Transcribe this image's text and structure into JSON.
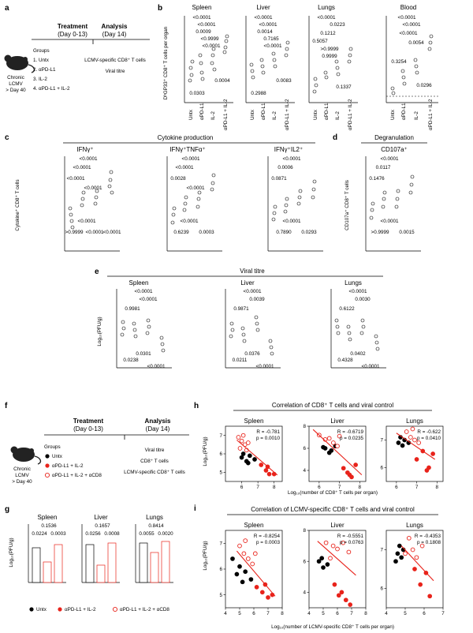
{
  "panels": {
    "a": {
      "letter": "a",
      "treatment_title": "Treatment",
      "treatment_sub": "(Day 0-13)",
      "analysis_title": "Analysis",
      "analysis_sub": "(Day 14)",
      "mouse_label": [
        "Chronic",
        "LCMV",
        "> Day 40"
      ],
      "groups_title": "Groups",
      "groups": [
        "1. Untx",
        "2. αPD-L1",
        "3. IL-2",
        "4. αPD-L1 + IL-2"
      ],
      "analysis_items": [
        "LCMV-specific CD8⁺ T cells",
        "Viral titre"
      ]
    },
    "b": {
      "letter": "b",
      "ylabel": "DᵇGP33⁺ CD8⁺ T cells per organ",
      "group_labels": [
        "Untx",
        "αPD-L1",
        "IL-2",
        "αPD-L1 + IL-2"
      ],
      "subplots": [
        {
          "title": "Spleen",
          "pvals": [
            "<0.0001",
            "<0.0001",
            "0.0009",
            "<0.9999",
            "<0.0001",
            "0.0303",
            "0.0004"
          ]
        },
        {
          "title": "Liver",
          "pvals": [
            "<0.0001",
            "<0.0001",
            "0.0014",
            "0.7165",
            "<0.0001",
            "0.2988",
            "0.0083"
          ]
        },
        {
          "title": "Lungs",
          "pvals": [
            "<0.0001",
            "0.0223",
            "0.1212",
            "0.5057",
            ">0.9999",
            "0.9999",
            "0.1337"
          ]
        },
        {
          "title": "Blood",
          "pvals": [
            "<0.0001",
            "<0.0001",
            "<0.0001",
            "0.0054",
            "0.3254",
            "0.0296"
          ]
        }
      ]
    },
    "c": {
      "letter": "c",
      "group_title": "Cytokine production",
      "ylabel": "Cytokine⁺ CD8⁺ T cells",
      "subplots": [
        {
          "title": "IFNγ⁺",
          "pvals": [
            "<0.0001",
            "<0.0001",
            "<0.0001",
            "<0.0001",
            "<0.0001",
            ">0.9999",
            "<0.0001",
            "<0.0001"
          ]
        },
        {
          "title": "IFNγ⁺TNFα⁺",
          "pvals": [
            "<0.0001",
            "<0.0001",
            "0.0028",
            "<0.0001",
            "<0.0001",
            "0.6239",
            "0.0003"
          ]
        },
        {
          "title": "IFNγ⁺IL2⁺",
          "pvals": [
            "<0.0001",
            "0.0006",
            "0.0871",
            "<0.0001",
            "0.7890",
            "0.0293"
          ]
        }
      ]
    },
    "d": {
      "letter": "d",
      "group_title": "Degranulation",
      "ylabel": "CD107a⁺ CD8⁺ T cells",
      "subplots": [
        {
          "title": "CD107a⁺",
          "pvals": [
            "<0.0001",
            "0.0117",
            "0.1476",
            "<0.0001",
            ">0.9999",
            "0.0015"
          ]
        }
      ]
    },
    "e": {
      "letter": "e",
      "group_title": "Viral titre",
      "ylabel": "Log₁₀(PFU/g)",
      "subplots": [
        {
          "title": "Spleen",
          "pvals": [
            "<0.0001",
            "<0.0001",
            "0.9981",
            "0.0238",
            "0.0301",
            "<0.0001"
          ]
        },
        {
          "title": "Liver",
          "pvals": [
            "<0.0001",
            "0.0039",
            "0.9871",
            "0.0211",
            "0.0376",
            "<0.0001"
          ]
        },
        {
          "title": "Lungs",
          "pvals": [
            "<0.0001",
            "0.0030",
            "0.6122",
            "0.4328",
            "0.0402",
            "<0.0001"
          ]
        }
      ]
    },
    "f": {
      "letter": "f",
      "treatment_title": "Treatment",
      "treatment_sub": "(Day 0-13)",
      "analysis_title": "Analysis",
      "analysis_sub": "(Day 14)",
      "mouse_label": [
        "Chronic",
        "LCMV",
        "> Day 40"
      ],
      "groups_title": "Groups",
      "groups": [
        "Untx",
        "αPD-L1 + IL-2",
        "αPD-L1 + IL-2 + αCD8"
      ],
      "analysis_items": [
        "Viral titre",
        "CD8⁺ T cells",
        "LCMV-specific CD8⁺ T cells"
      ]
    },
    "g": {
      "letter": "g",
      "ylabel": "Log₁₀(PFU/g)",
      "subplots": [
        {
          "title": "Spleen",
          "pvals": [
            "0.1536",
            "0.0224",
            "0.0003"
          ]
        },
        {
          "title": "Liver",
          "pvals": [
            "0.1657",
            "0.0256",
            "0.0008"
          ]
        },
        {
          "title": "Lungs",
          "pvals": [
            "0.8414",
            "0.0055",
            "0.0020"
          ]
        }
      ],
      "legend": [
        "Untx",
        "αPD-L1 + IL-2",
        "αPD-L1 + IL-2 + αCD8"
      ]
    },
    "h": {
      "letter": "h",
      "title": "Correlation of CD8⁺ T cells and viral control",
      "ylabel": "Log₁₀(PFU/g)",
      "xlabel": "Log₁₀(number of CD8⁺ T cells per organ)"
    },
    "i": {
      "letter": "i",
      "title": "Correlation of LCMV-specific CD8⁺ T cells and viral control",
      "ylabel": "Log₁₀(PFU/g)",
      "xlabel": "Log₁₀(number of LCMV-specific CD8⁺ T cells per organ)"
    }
  },
  "colors": {
    "untx": "#000000",
    "pdl1_il2": "#e8231b",
    "cd8_depl": "#e8231b",
    "fit": "#e8231b"
  },
  "chart_data": [
    {
      "id": "h-spleen",
      "type": "scatter",
      "title": "Spleen",
      "xlim": [
        5,
        8.5
      ],
      "ylim": [
        4.5,
        7.5
      ],
      "xticks": [
        6,
        7,
        8
      ],
      "yticks": [
        5,
        6,
        7
      ],
      "annotation": [
        "R = -0.781",
        "p = 0.0010"
      ],
      "series": [
        {
          "name": "Untx",
          "color": "#000000",
          "filled": true,
          "x": [
            6.0,
            6.3,
            6.5,
            6.4,
            6.1,
            6.8
          ],
          "y": [
            5.8,
            5.6,
            5.9,
            5.5,
            6.0,
            5.7
          ]
        },
        {
          "name": "αPD-L1 + IL-2",
          "color": "#e8231b",
          "filled": true,
          "x": [
            7.2,
            7.5,
            7.7,
            8.0,
            7.6
          ],
          "y": [
            5.4,
            5.1,
            4.9,
            4.9,
            5.3
          ]
        },
        {
          "name": "αPD-L1 + IL-2 + αCD8",
          "color": "#e8231b",
          "filled": false,
          "x": [
            5.8,
            6.0,
            6.2,
            6.4,
            5.9,
            6.1,
            6.3
          ],
          "y": [
            6.9,
            6.7,
            6.5,
            6.6,
            6.3,
            7.0,
            6.2
          ]
        }
      ],
      "fit": {
        "x": [
          5.7,
          8.2
        ],
        "y": [
          6.75,
          4.85
        ]
      }
    },
    {
      "id": "h-liver",
      "type": "scatter",
      "title": "Liver",
      "xlim": [
        5.5,
        8.3
      ],
      "ylim": [
        3,
        8
      ],
      "xticks": [
        6,
        7,
        8
      ],
      "yticks": [
        4,
        6,
        8
      ],
      "annotation": [
        "R = -0.6719",
        "p = 0.0235"
      ],
      "series": [
        {
          "name": "Untx",
          "color": "#000000",
          "filled": true,
          "x": [
            6.3,
            6.6,
            6.8,
            6.5,
            6.2
          ],
          "y": [
            6.0,
            5.8,
            6.2,
            5.6,
            6.1
          ]
        },
        {
          "name": "αPD-L1 + IL-2",
          "color": "#e8231b",
          "filled": true,
          "x": [
            7.2,
            7.4,
            7.6,
            7.8,
            7.5
          ],
          "y": [
            4.2,
            3.8,
            3.4,
            4.5,
            3.6
          ]
        },
        {
          "name": "αPD-L1 + IL-2 + αCD8",
          "color": "#e8231b",
          "filled": false,
          "x": [
            6.0,
            6.3,
            6.7,
            7.0,
            6.5,
            6.9
          ],
          "y": [
            7.2,
            6.8,
            6.5,
            7.1,
            6.9,
            6.2
          ]
        }
      ],
      "fit": {
        "x": [
          5.7,
          8.1
        ],
        "y": [
          7.7,
          3.6
        ]
      }
    },
    {
      "id": "h-lungs",
      "type": "scatter",
      "title": "Lungs",
      "xlim": [
        5.5,
        8.3
      ],
      "ylim": [
        5.5,
        7.5
      ],
      "xticks": [
        6,
        7,
        8
      ],
      "yticks": [
        6,
        7
      ],
      "annotation": [
        "R = -0.622",
        "p = 0.0410"
      ],
      "series": [
        {
          "name": "Untx",
          "color": "#000000",
          "filled": true,
          "x": [
            6.1,
            6.3,
            6.4,
            6.2,
            6.6
          ],
          "y": [
            6.9,
            6.8,
            7.0,
            7.1,
            6.9
          ]
        },
        {
          "name": "αPD-L1 + IL-2",
          "color": "#e8231b",
          "filled": true,
          "x": [
            7.0,
            7.3,
            7.6,
            7.8,
            7.5
          ],
          "y": [
            6.3,
            6.6,
            6.0,
            6.5,
            5.9
          ]
        },
        {
          "name": "αPD-L1 + IL-2 + αCD8",
          "color": "#e8231b",
          "filled": false,
          "x": [
            6.5,
            6.7,
            6.9,
            6.8,
            7.1
          ],
          "y": [
            7.3,
            7.1,
            7.0,
            7.4,
            6.9
          ]
        }
      ],
      "fit": {
        "x": [
          6.0,
          7.9
        ],
        "y": [
          7.25,
          6.3
        ]
      }
    },
    {
      "id": "i-spleen",
      "type": "scatter",
      "title": "Spleen",
      "xlim": [
        4,
        8
      ],
      "ylim": [
        4.5,
        7.5
      ],
      "xticks": [
        4,
        5,
        6,
        7,
        8
      ],
      "yticks": [
        5,
        6,
        7
      ],
      "annotation": [
        "R = -0.8254",
        "p = 0.0003"
      ],
      "series": [
        {
          "name": "Untx",
          "color": "#000000",
          "filled": true,
          "x": [
            4.5,
            5.0,
            5.4,
            5.8,
            5.2,
            4.8
          ],
          "y": [
            6.4,
            6.1,
            5.9,
            5.6,
            5.5,
            5.8
          ]
        },
        {
          "name": "αPD-L1 + IL-2",
          "color": "#e8231b",
          "filled": true,
          "x": [
            6.2,
            6.6,
            7.0,
            7.3,
            6.8
          ],
          "y": [
            5.3,
            5.1,
            4.9,
            5.0,
            5.4
          ]
        },
        {
          "name": "αPD-L1 + IL-2 + αCD8",
          "color": "#e8231b",
          "filled": false,
          "x": [
            5.0,
            5.3,
            5.6,
            5.9,
            6.1,
            5.4
          ],
          "y": [
            6.9,
            6.6,
            6.4,
            6.2,
            6.6,
            7.1
          ]
        }
      ],
      "fit": {
        "x": [
          4.8,
          7.5
        ],
        "y": [
          6.7,
          4.95
        ]
      }
    },
    {
      "id": "i-liver",
      "type": "scatter",
      "title": "Liver",
      "xlim": [
        4,
        8
      ],
      "ylim": [
        3,
        8
      ],
      "xticks": [
        4,
        5,
        6,
        7,
        8
      ],
      "yticks": [
        4,
        6,
        8
      ],
      "annotation": [
        "R = -0.5551",
        "p = 0.0763"
      ],
      "series": [
        {
          "name": "Untx",
          "color": "#000000",
          "filled": true,
          "x": [
            4.7,
            5.0,
            5.3,
            4.9
          ],
          "y": [
            6.0,
            5.6,
            5.8,
            6.2
          ]
        },
        {
          "name": "αPD-L1 + IL-2",
          "color": "#e8231b",
          "filled": true,
          "x": [
            5.8,
            6.3,
            6.6,
            6.9,
            6.1
          ],
          "y": [
            4.5,
            4.0,
            3.5,
            3.2,
            3.8
          ]
        },
        {
          "name": "αPD-L1 + IL-2 + αCD8",
          "color": "#e8231b",
          "filled": false,
          "x": [
            5.2,
            5.7,
            6.0,
            6.4,
            5.5,
            6.8
          ],
          "y": [
            7.2,
            7.0,
            6.8,
            7.2,
            6.2,
            6.6
          ]
        }
      ],
      "fit": {
        "x": [
          4.6,
          7.3
        ],
        "y": [
          7.3,
          5.1
        ]
      }
    },
    {
      "id": "i-lungs",
      "type": "scatter",
      "title": "Lungs",
      "xlim": [
        4,
        7
      ],
      "ylim": [
        5.5,
        7.5
      ],
      "xticks": [
        4,
        5,
        6,
        7
      ],
      "yticks": [
        6,
        7
      ],
      "annotation": [
        "R = -0.4353",
        "p = 0.1808"
      ],
      "series": [
        {
          "name": "Untx",
          "color": "#000000",
          "filled": true,
          "x": [
            4.6,
            4.8,
            4.9,
            4.7,
            4.5
          ],
          "y": [
            6.9,
            6.8,
            7.0,
            7.1,
            6.7
          ]
        },
        {
          "name": "αPD-L1 + IL-2",
          "color": "#e8231b",
          "filled": true,
          "x": [
            5.5,
            5.8,
            6.1,
            6.3
          ],
          "y": [
            6.5,
            6.1,
            6.4,
            5.8
          ]
        },
        {
          "name": "αPD-L1 + IL-2 + αCD8",
          "color": "#e8231b",
          "filled": false,
          "x": [
            5.2,
            5.4,
            5.6,
            5.9,
            5.0
          ],
          "y": [
            7.3,
            7.0,
            6.8,
            7.1,
            6.9
          ]
        }
      ],
      "fit": {
        "x": [
          4.8,
          6.5
        ],
        "y": [
          7.1,
          6.2
        ]
      }
    }
  ]
}
